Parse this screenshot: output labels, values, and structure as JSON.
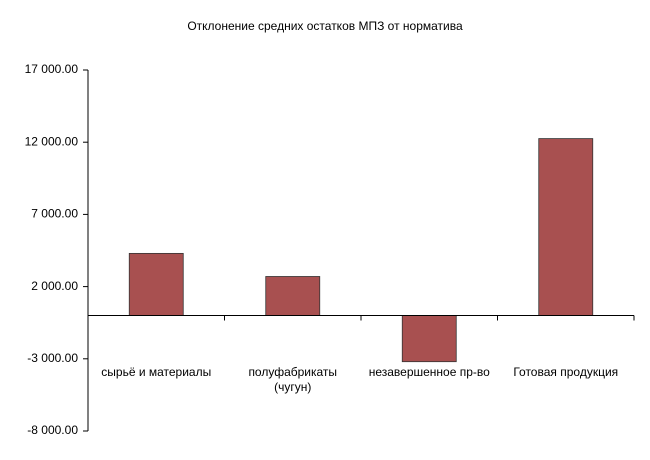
{
  "chart_data": {
    "type": "bar",
    "title": "Отклонение средних остатков МПЗ от норматива",
    "categories": [
      "сырьё и материалы",
      "полуфабрикаты (чугун)",
      "незавершенное пр-во",
      "Готовая продукция"
    ],
    "values": [
      4300,
      2700,
      -3200,
      12250
    ],
    "color": "#a85050",
    "ylim": [
      -8000,
      17000
    ],
    "yticks": [
      {
        "value": -8000,
        "label": "-8 000.00"
      },
      {
        "value": -3000,
        "label": "-3 000.00"
      },
      {
        "value": 2000,
        "label": "2 000.00"
      },
      {
        "value": 7000,
        "label": "7 000.00"
      },
      {
        "value": 12000,
        "label": "12 000.00"
      },
      {
        "value": 17000,
        "label": "17 000.00"
      }
    ],
    "grid": false
  }
}
